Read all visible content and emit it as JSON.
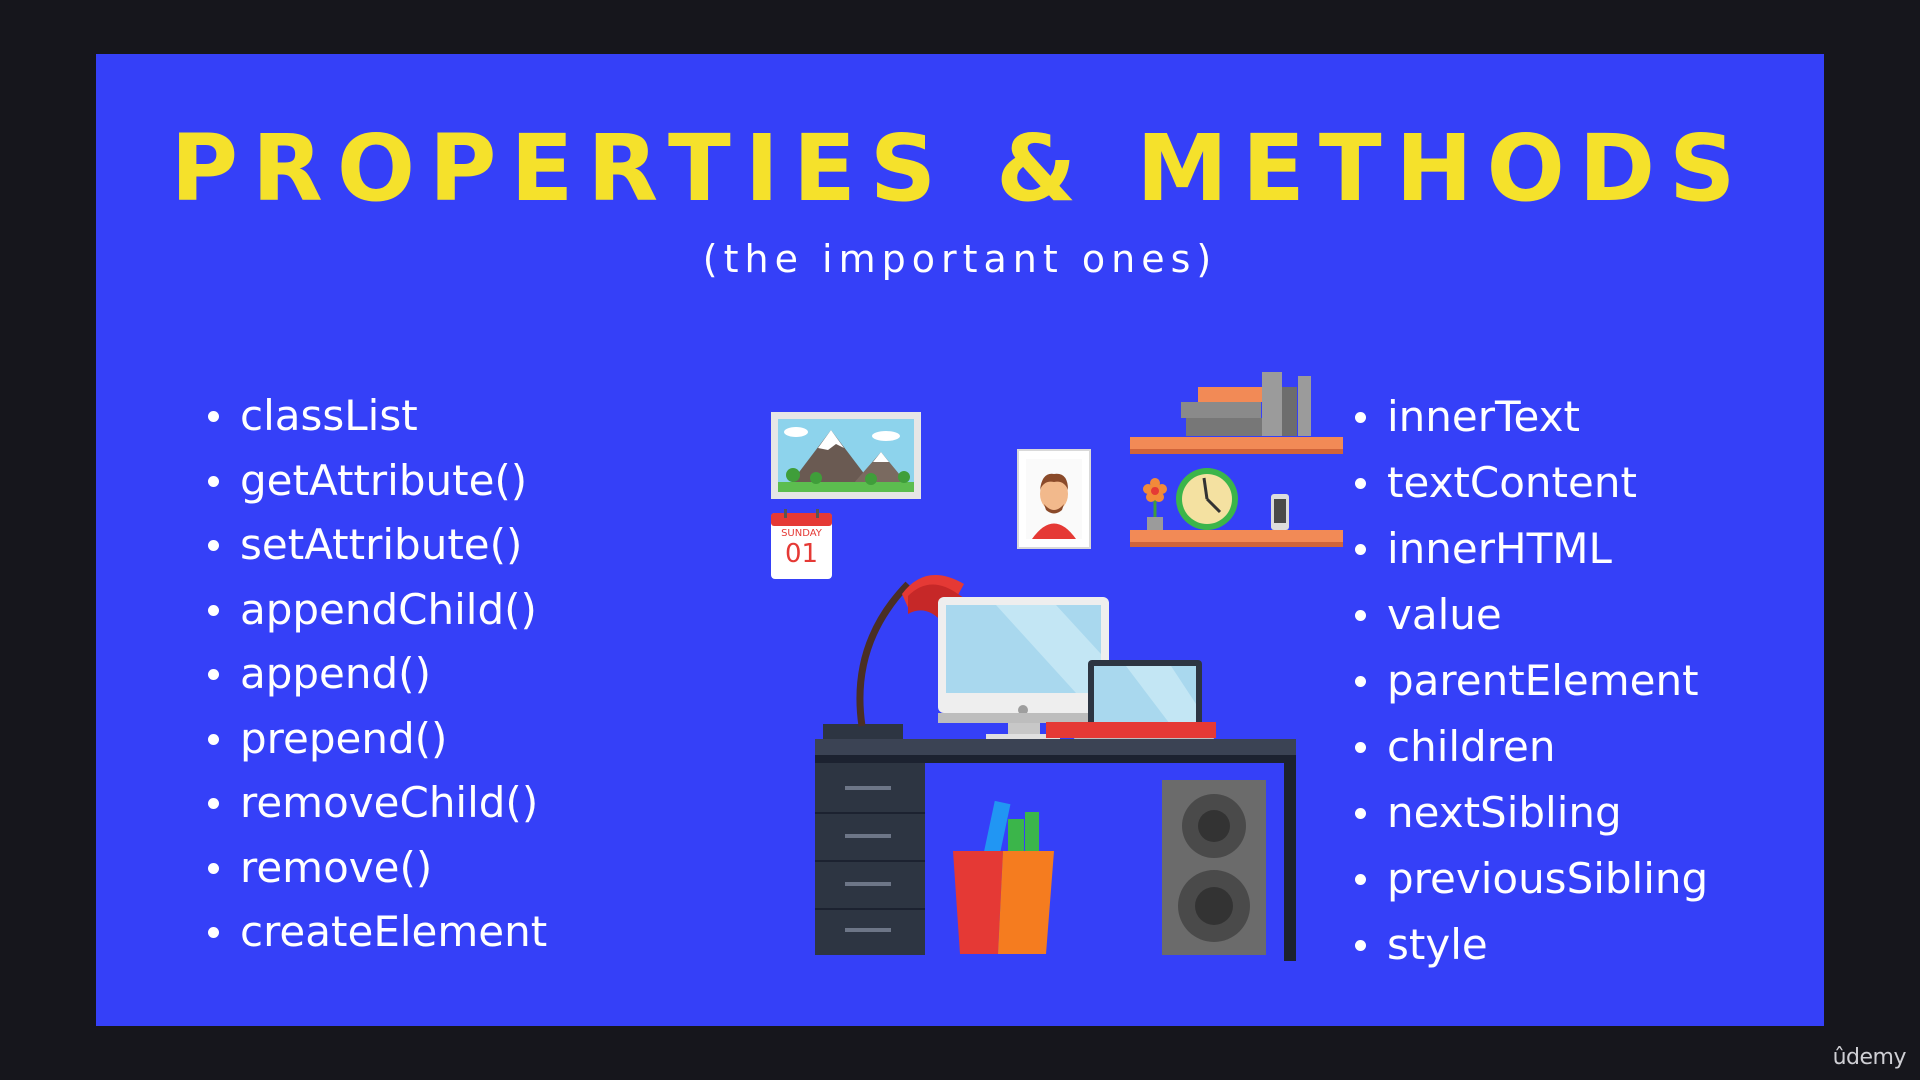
{
  "slide": {
    "title": "PROPERTIES & METHODS",
    "subtitle": "(the important ones)",
    "left_items": [
      "classList",
      "getAttribute()",
      "setAttribute()",
      "appendChild()",
      "append()",
      "prepend()",
      "removeChild()",
      "remove()",
      "createElement"
    ],
    "right_items": [
      "innerText",
      "textContent",
      "innerHTML",
      "value",
      "parentElement",
      "children",
      "nextSibling",
      "previousSibling",
      "style"
    ]
  },
  "illustration": {
    "calendar_day": "SUNDAY",
    "calendar_date": "01"
  },
  "watermark": "ûdemy",
  "colors": {
    "background": "#3540f8",
    "title": "#f5e12b",
    "text": "#ffffff",
    "frame": "#16161c"
  },
  "icons": [
    "mountain-picture-icon",
    "calendar-icon",
    "portrait-icon",
    "bookshelf-icon",
    "clock-icon",
    "flower-icon",
    "phone-icon",
    "desk-lamp-icon",
    "monitor-icon",
    "laptop-icon",
    "desk-icon",
    "pencil-cup-icon",
    "speaker-icon"
  ]
}
